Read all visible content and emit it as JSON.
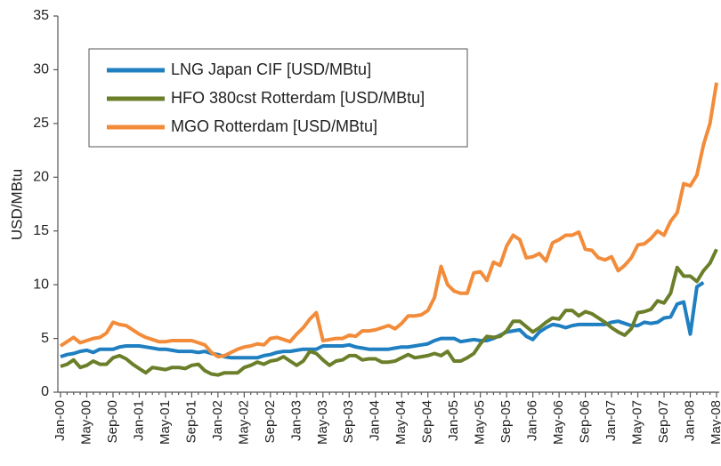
{
  "chart_data": {
    "type": "line",
    "y_label": "USD/MBtu",
    "categories": [
      "Jan-00",
      null,
      null,
      null,
      "May-00",
      null,
      null,
      null,
      "Sep-00",
      null,
      null,
      null,
      "Jan-01",
      null,
      null,
      null,
      "May-01",
      null,
      null,
      null,
      "Sep-01",
      null,
      null,
      null,
      "Jan-02",
      null,
      null,
      null,
      "May-02",
      null,
      null,
      null,
      "Sep-02",
      null,
      null,
      null,
      "Jan-03",
      null,
      null,
      null,
      "May-03",
      null,
      null,
      null,
      "Sep-03",
      null,
      null,
      null,
      "Jan-04",
      null,
      null,
      null,
      "May-04",
      null,
      null,
      null,
      "Sep-04",
      null,
      null,
      null,
      "Jan-05",
      null,
      null,
      null,
      "May-05",
      null,
      null,
      null,
      "Sep-05",
      null,
      null,
      null,
      "Jan-06",
      null,
      null,
      null,
      "May-06",
      null,
      null,
      null,
      "Sep-06",
      null,
      null,
      null,
      "Jan-07",
      null,
      null,
      null,
      "May-07",
      null,
      null,
      null,
      "Sep-07",
      null,
      null,
      null,
      "Jan-08",
      null,
      null,
      null,
      "May-08"
    ],
    "series": [
      {
        "name": "LNG Japan CIF [USD/MBtu]",
        "color": "#1f7fc1",
        "values": [
          3.3,
          3.5,
          3.6,
          3.8,
          3.9,
          3.7,
          4.0,
          4.0,
          4.0,
          4.2,
          4.3,
          4.3,
          4.3,
          4.2,
          4.1,
          4.0,
          4.0,
          3.9,
          3.8,
          3.8,
          3.8,
          3.7,
          3.8,
          3.6,
          3.5,
          3.3,
          3.2,
          3.2,
          3.2,
          3.2,
          3.2,
          3.4,
          3.5,
          3.7,
          3.8,
          3.8,
          3.9,
          4.0,
          4.0,
          4.0,
          4.3,
          4.3,
          4.3,
          4.3,
          4.4,
          4.2,
          4.1,
          4.0,
          4.0,
          4.0,
          4.0,
          4.1,
          4.2,
          4.2,
          4.3,
          4.4,
          4.5,
          4.8,
          5.0,
          5.0,
          5.0,
          4.7,
          4.8,
          4.9,
          4.8,
          4.8,
          5.0,
          5.3,
          5.6,
          5.7,
          5.8,
          5.2,
          4.9,
          5.6,
          6.0,
          6.3,
          6.2,
          6.0,
          6.2,
          6.3,
          6.3,
          6.3,
          6.3,
          6.3,
          6.5,
          6.6,
          6.4,
          6.2,
          6.2,
          6.5,
          6.4,
          6.5,
          6.9,
          7.0,
          8.2,
          8.4,
          5.4,
          9.8,
          10.2,
          null,
          null
        ]
      },
      {
        "name": "HFO 380cst Rotterdam [USD/MBtu]",
        "color": "#6b7f2a",
        "values": [
          2.4,
          2.6,
          3.0,
          2.3,
          2.5,
          2.9,
          2.6,
          2.6,
          3.2,
          3.4,
          3.1,
          2.6,
          2.2,
          1.8,
          2.3,
          2.2,
          2.1,
          2.3,
          2.3,
          2.2,
          2.5,
          2.6,
          2.0,
          1.7,
          1.6,
          1.8,
          1.8,
          1.8,
          2.3,
          2.5,
          2.8,
          2.6,
          2.9,
          3.0,
          3.3,
          2.9,
          2.5,
          2.9,
          3.8,
          3.6,
          3.0,
          2.5,
          2.9,
          3.0,
          3.4,
          3.4,
          3.0,
          3.1,
          3.1,
          2.8,
          2.8,
          2.9,
          3.2,
          3.5,
          3.2,
          3.3,
          3.4,
          3.6,
          3.4,
          3.8,
          2.9,
          2.9,
          3.2,
          3.6,
          4.5,
          5.2,
          5.1,
          5.2,
          5.7,
          6.6,
          6.6,
          6.1,
          5.6,
          6.0,
          6.5,
          6.9,
          6.8,
          7.6,
          7.6,
          7.1,
          7.5,
          7.3,
          6.9,
          6.5,
          6.0,
          5.6,
          5.3,
          5.9,
          7.4,
          7.5,
          7.7,
          8.5,
          8.3,
          9.2,
          11.6,
          10.8,
          10.8,
          10.3,
          11.3,
          12.0,
          13.3
        ]
      },
      {
        "name": "MGO Rotterdam [USD/MBtu]",
        "color": "#f28c3a",
        "values": [
          4.3,
          4.7,
          5.1,
          4.6,
          4.8,
          5.0,
          5.1,
          5.5,
          6.5,
          6.3,
          6.2,
          5.8,
          5.4,
          5.1,
          4.9,
          4.7,
          4.7,
          4.8,
          4.8,
          4.8,
          4.8,
          4.6,
          4.4,
          3.7,
          3.3,
          3.4,
          3.7,
          4.0,
          4.2,
          4.3,
          4.5,
          4.4,
          5.0,
          5.1,
          4.9,
          4.7,
          5.4,
          6.0,
          6.8,
          7.4,
          4.8,
          4.9,
          5.0,
          5.0,
          5.3,
          5.2,
          5.7,
          5.7,
          5.8,
          6.0,
          6.2,
          5.9,
          6.4,
          7.1,
          7.1,
          7.2,
          7.6,
          8.8,
          11.7,
          10.0,
          9.4,
          9.2,
          9.2,
          11.1,
          11.2,
          10.4,
          12.1,
          11.8,
          13.6,
          14.6,
          14.2,
          12.5,
          12.6,
          12.9,
          12.2,
          13.9,
          14.2,
          14.6,
          14.6,
          14.9,
          13.3,
          13.2,
          12.5,
          12.3,
          12.6,
          11.3,
          11.8,
          12.5,
          13.7,
          13.8,
          14.3,
          15.0,
          14.6,
          15.9,
          16.7,
          19.4,
          19.2,
          20.2,
          23.0,
          25.0,
          28.8
        ]
      }
    ],
    "ylim": [
      0,
      35
    ],
    "yticks": [
      0,
      5,
      10,
      15,
      20,
      25,
      30,
      35
    ],
    "grid": false,
    "legend": "upper left"
  }
}
